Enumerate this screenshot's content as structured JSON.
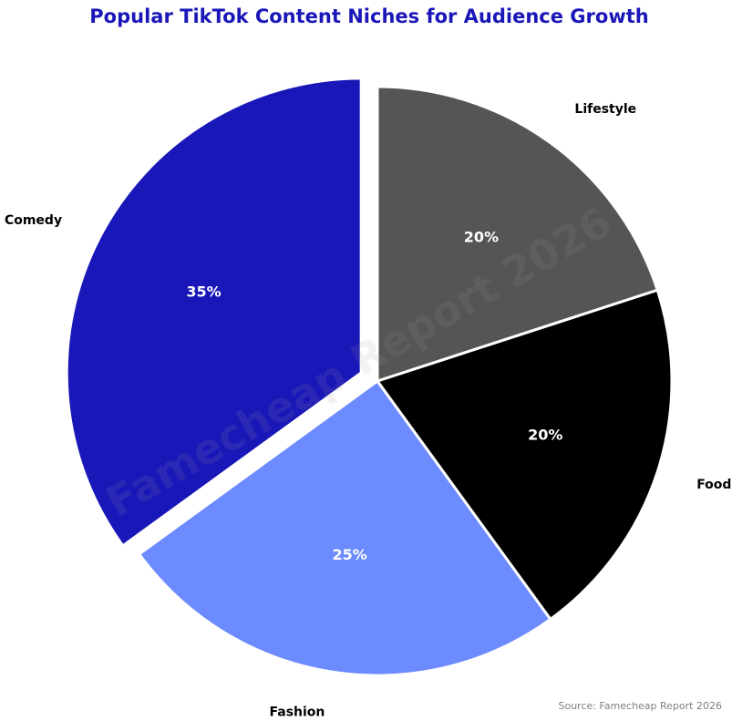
{
  "chart_data": {
    "type": "pie",
    "title": "Popular TikTok Content Niches for Audience Growth",
    "categories": [
      "Comedy",
      "Fashion",
      "Food",
      "Lifestyle"
    ],
    "values": [
      35,
      25,
      20,
      20
    ],
    "value_labels": [
      "35%",
      "25%",
      "20%",
      "20%"
    ],
    "colors": [
      "#1a17b8",
      "#6b8bff",
      "#000000",
      "#555555"
    ],
    "watermark": "Famecheap Report 2026",
    "source": "Source: Famecheap Report 2026"
  }
}
